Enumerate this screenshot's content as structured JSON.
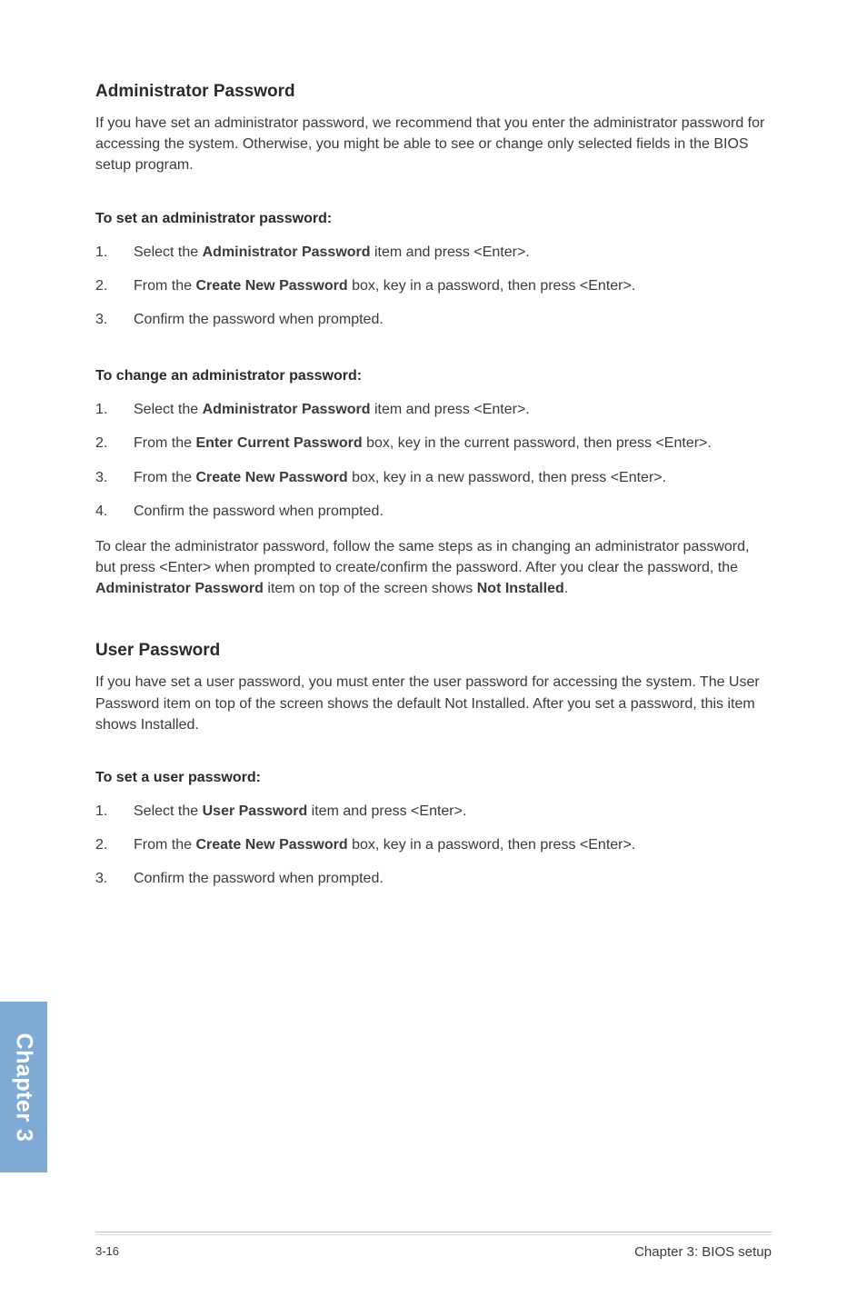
{
  "admin": {
    "heading": "Administrator Password",
    "intro": "If you have set an administrator password, we recommend that you enter the administrator password for accessing the system. Otherwise, you might be able to see or change only selected fields in the BIOS setup program.",
    "set_heading": "To set an administrator password:",
    "set_steps": {
      "s1_a": "Select the ",
      "s1_b": "Administrator Password",
      "s1_c": " item and press <Enter>.",
      "s2_a": "From the ",
      "s2_b": "Create New Password",
      "s2_c": " box, key in a password, then press <Enter>.",
      "s3": "Confirm the password when prompted."
    },
    "change_heading": "To change an administrator password:",
    "change_steps": {
      "s1_a": "Select the ",
      "s1_b": "Administrator Password",
      "s1_c": " item and press <Enter>.",
      "s2_a": "From the ",
      "s2_b": "Enter Current Password",
      "s2_c": " box, key in the current password, then press <Enter>.",
      "s3_a": "From the ",
      "s3_b": "Create New Password",
      "s3_c": " box, key in a new password, then press <Enter>.",
      "s4": "Confirm the password when prompted."
    },
    "clear_a": "To clear the administrator password, follow the same steps as in changing an administrator password, but press <Enter> when prompted to create/confirm the password. After you clear the password, the ",
    "clear_b": "Administrator Password",
    "clear_c": " item on top of the screen shows ",
    "clear_d": "Not Installed",
    "clear_e": "."
  },
  "user": {
    "heading": "User Password",
    "intro": "If you have set a user password, you must enter the user password for accessing the system. The User Password item on top of the screen shows the default Not Installed. After you set a password, this item shows Installed.",
    "set_heading": "To set a user password:",
    "set_steps": {
      "s1_a": "Select the ",
      "s1_b": "User Password",
      "s1_c": " item and press <Enter>.",
      "s2_a": "From the ",
      "s2_b": "Create New Password",
      "s2_c": " box, key in a password, then press <Enter>.",
      "s3": "Confirm the password when prompted."
    }
  },
  "nums": {
    "n1": "1.",
    "n2": "2.",
    "n3": "3.",
    "n4": "4."
  },
  "chapter_tab": "Chapter 3",
  "footer": {
    "page_num": "3-16",
    "chapter_label": "Chapter 3: BIOS setup"
  }
}
